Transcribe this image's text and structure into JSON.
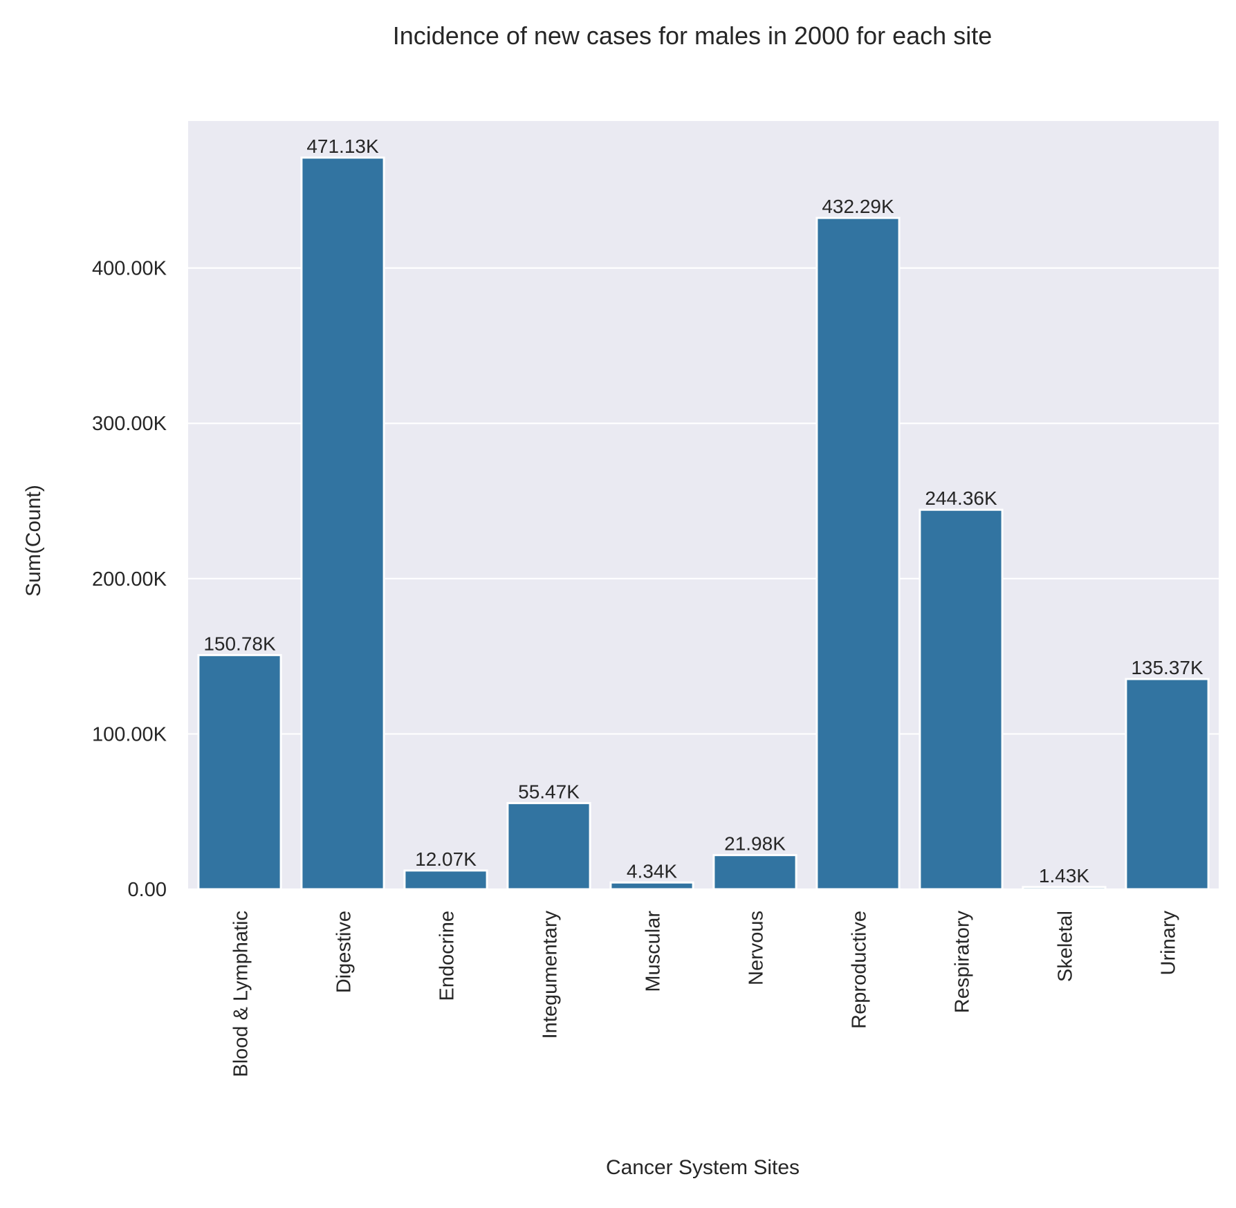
{
  "chart_data": {
    "type": "bar",
    "title": "Incidence of new cases for males in 2000 for each site",
    "xlabel": "Cancer System Sites",
    "ylabel": "Sum(Count)",
    "categories": [
      "Blood & Lymphatic",
      "Digestive",
      "Endocrine",
      "Integumentary",
      "Muscular",
      "Nervous",
      "Reproductive",
      "Respiratory",
      "Skeletal",
      "Urinary"
    ],
    "values": [
      150780,
      471130,
      12070,
      55470,
      4340,
      21980,
      432290,
      244360,
      1430,
      135370
    ],
    "value_labels": [
      "150.78K",
      "471.13K",
      "12.07K",
      "55.47K",
      "4.34K",
      "21.98K",
      "432.29K",
      "244.36K",
      "1.43K",
      "135.37K"
    ],
    "yticks": [
      0,
      100000,
      200000,
      300000,
      400000
    ],
    "ytick_labels": [
      "0.00",
      "100.00K",
      "200.00K",
      "300.00K",
      "400.00K"
    ],
    "ylim": [
      0,
      494690
    ],
    "grid": true,
    "colors": {
      "bar": "#3274a1",
      "plot_background": "#eaeaf2",
      "grid": "#ffffff",
      "text": "#262626"
    }
  }
}
